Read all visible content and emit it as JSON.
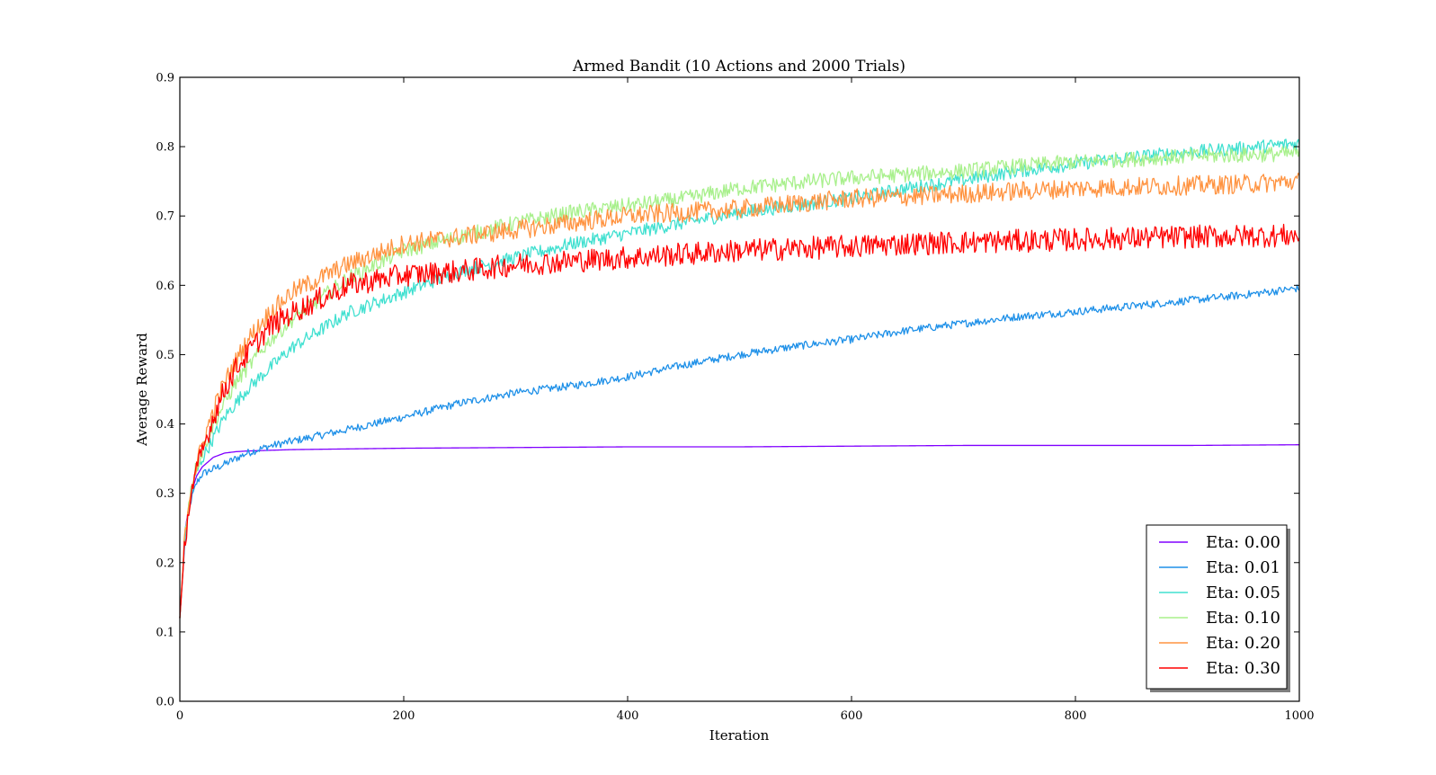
{
  "chart_data": {
    "type": "line",
    "title": "Armed Bandit (10 Actions and 2000 Trials)",
    "xlabel": "Iteration",
    "ylabel": "Average Reward",
    "xlim": [
      0,
      1000
    ],
    "ylim": [
      0.0,
      0.9
    ],
    "xticks": [
      0,
      200,
      400,
      600,
      800,
      1000
    ],
    "xtick_labels": [
      "0",
      "200",
      "400",
      "600",
      "800",
      "1000"
    ],
    "yticks": [
      0.0,
      0.1,
      0.2,
      0.3,
      0.4,
      0.5,
      0.6,
      0.7,
      0.8,
      0.9
    ],
    "ytick_labels": [
      "0.0",
      "0.1",
      "0.2",
      "0.3",
      "0.4",
      "0.5",
      "0.6",
      "0.7",
      "0.8",
      "0.9"
    ],
    "grid": false,
    "legend_position": "bottom-right",
    "series": [
      {
        "name": "Eta: 0.00",
        "color": "#8000ff",
        "noise": 0.0,
        "x": [
          0,
          5,
          10,
          15,
          20,
          30,
          40,
          50,
          60,
          80,
          100,
          150,
          200,
          300,
          400,
          500,
          600,
          700,
          800,
          900,
          1000
        ],
        "y": [
          0.12,
          0.25,
          0.3,
          0.325,
          0.338,
          0.352,
          0.358,
          0.36,
          0.361,
          0.362,
          0.363,
          0.364,
          0.365,
          0.366,
          0.367,
          0.367,
          0.368,
          0.369,
          0.369,
          0.369,
          0.37
        ]
      },
      {
        "name": "Eta: 0.01",
        "color": "#1e90e8",
        "noise": 0.004,
        "x": [
          0,
          5,
          10,
          15,
          20,
          30,
          40,
          50,
          60,
          80,
          100,
          150,
          200,
          250,
          300,
          350,
          400,
          450,
          500,
          550,
          600,
          650,
          700,
          750,
          800,
          850,
          900,
          950,
          1000
        ],
        "y": [
          0.12,
          0.24,
          0.29,
          0.315,
          0.328,
          0.335,
          0.342,
          0.35,
          0.358,
          0.368,
          0.375,
          0.392,
          0.41,
          0.43,
          0.445,
          0.455,
          0.468,
          0.485,
          0.5,
          0.512,
          0.522,
          0.535,
          0.545,
          0.555,
          0.562,
          0.57,
          0.578,
          0.586,
          0.596
        ]
      },
      {
        "name": "Eta: 0.05",
        "color": "#40e0d0",
        "noise": 0.007,
        "x": [
          0,
          5,
          10,
          15,
          20,
          30,
          40,
          50,
          60,
          80,
          100,
          150,
          200,
          250,
          300,
          350,
          400,
          450,
          500,
          550,
          600,
          650,
          700,
          750,
          800,
          850,
          900,
          950,
          1000
        ],
        "y": [
          0.12,
          0.25,
          0.3,
          0.33,
          0.35,
          0.38,
          0.41,
          0.43,
          0.45,
          0.48,
          0.51,
          0.56,
          0.59,
          0.62,
          0.64,
          0.66,
          0.675,
          0.69,
          0.705,
          0.715,
          0.725,
          0.74,
          0.752,
          0.765,
          0.775,
          0.785,
          0.792,
          0.798,
          0.805
        ]
      },
      {
        "name": "Eta: 0.10",
        "color": "#a8f08c",
        "noise": 0.008,
        "x": [
          0,
          5,
          10,
          15,
          20,
          30,
          40,
          50,
          60,
          80,
          100,
          150,
          200,
          250,
          300,
          350,
          400,
          450,
          500,
          550,
          600,
          650,
          700,
          750,
          800,
          850,
          900,
          950,
          1000
        ],
        "y": [
          0.12,
          0.25,
          0.31,
          0.34,
          0.36,
          0.4,
          0.43,
          0.46,
          0.48,
          0.52,
          0.55,
          0.61,
          0.65,
          0.67,
          0.69,
          0.705,
          0.715,
          0.725,
          0.74,
          0.748,
          0.755,
          0.76,
          0.765,
          0.772,
          0.778,
          0.782,
          0.786,
          0.788,
          0.79
        ]
      },
      {
        "name": "Eta: 0.20",
        "color": "#ff9340",
        "noise": 0.01,
        "x": [
          0,
          5,
          10,
          15,
          20,
          30,
          40,
          50,
          60,
          80,
          100,
          150,
          200,
          250,
          300,
          350,
          400,
          450,
          500,
          550,
          600,
          650,
          700,
          750,
          800,
          850,
          900,
          950,
          1000
        ],
        "y": [
          0.12,
          0.25,
          0.31,
          0.34,
          0.37,
          0.42,
          0.46,
          0.49,
          0.52,
          0.56,
          0.59,
          0.63,
          0.66,
          0.67,
          0.68,
          0.69,
          0.7,
          0.705,
          0.71,
          0.718,
          0.725,
          0.728,
          0.732,
          0.736,
          0.74,
          0.742,
          0.744,
          0.746,
          0.75
        ]
      },
      {
        "name": "Eta: 0.30",
        "color": "#ff0000",
        "noise": 0.012,
        "x": [
          0,
          5,
          10,
          15,
          20,
          30,
          40,
          50,
          60,
          80,
          100,
          150,
          200,
          250,
          300,
          350,
          400,
          450,
          500,
          550,
          600,
          650,
          700,
          750,
          800,
          850,
          900,
          950,
          1000
        ],
        "y": [
          0.12,
          0.24,
          0.3,
          0.33,
          0.36,
          0.41,
          0.45,
          0.48,
          0.5,
          0.54,
          0.56,
          0.6,
          0.615,
          0.62,
          0.63,
          0.635,
          0.64,
          0.645,
          0.65,
          0.653,
          0.656,
          0.66,
          0.662,
          0.664,
          0.666,
          0.668,
          0.67,
          0.671,
          0.672
        ]
      }
    ]
  }
}
